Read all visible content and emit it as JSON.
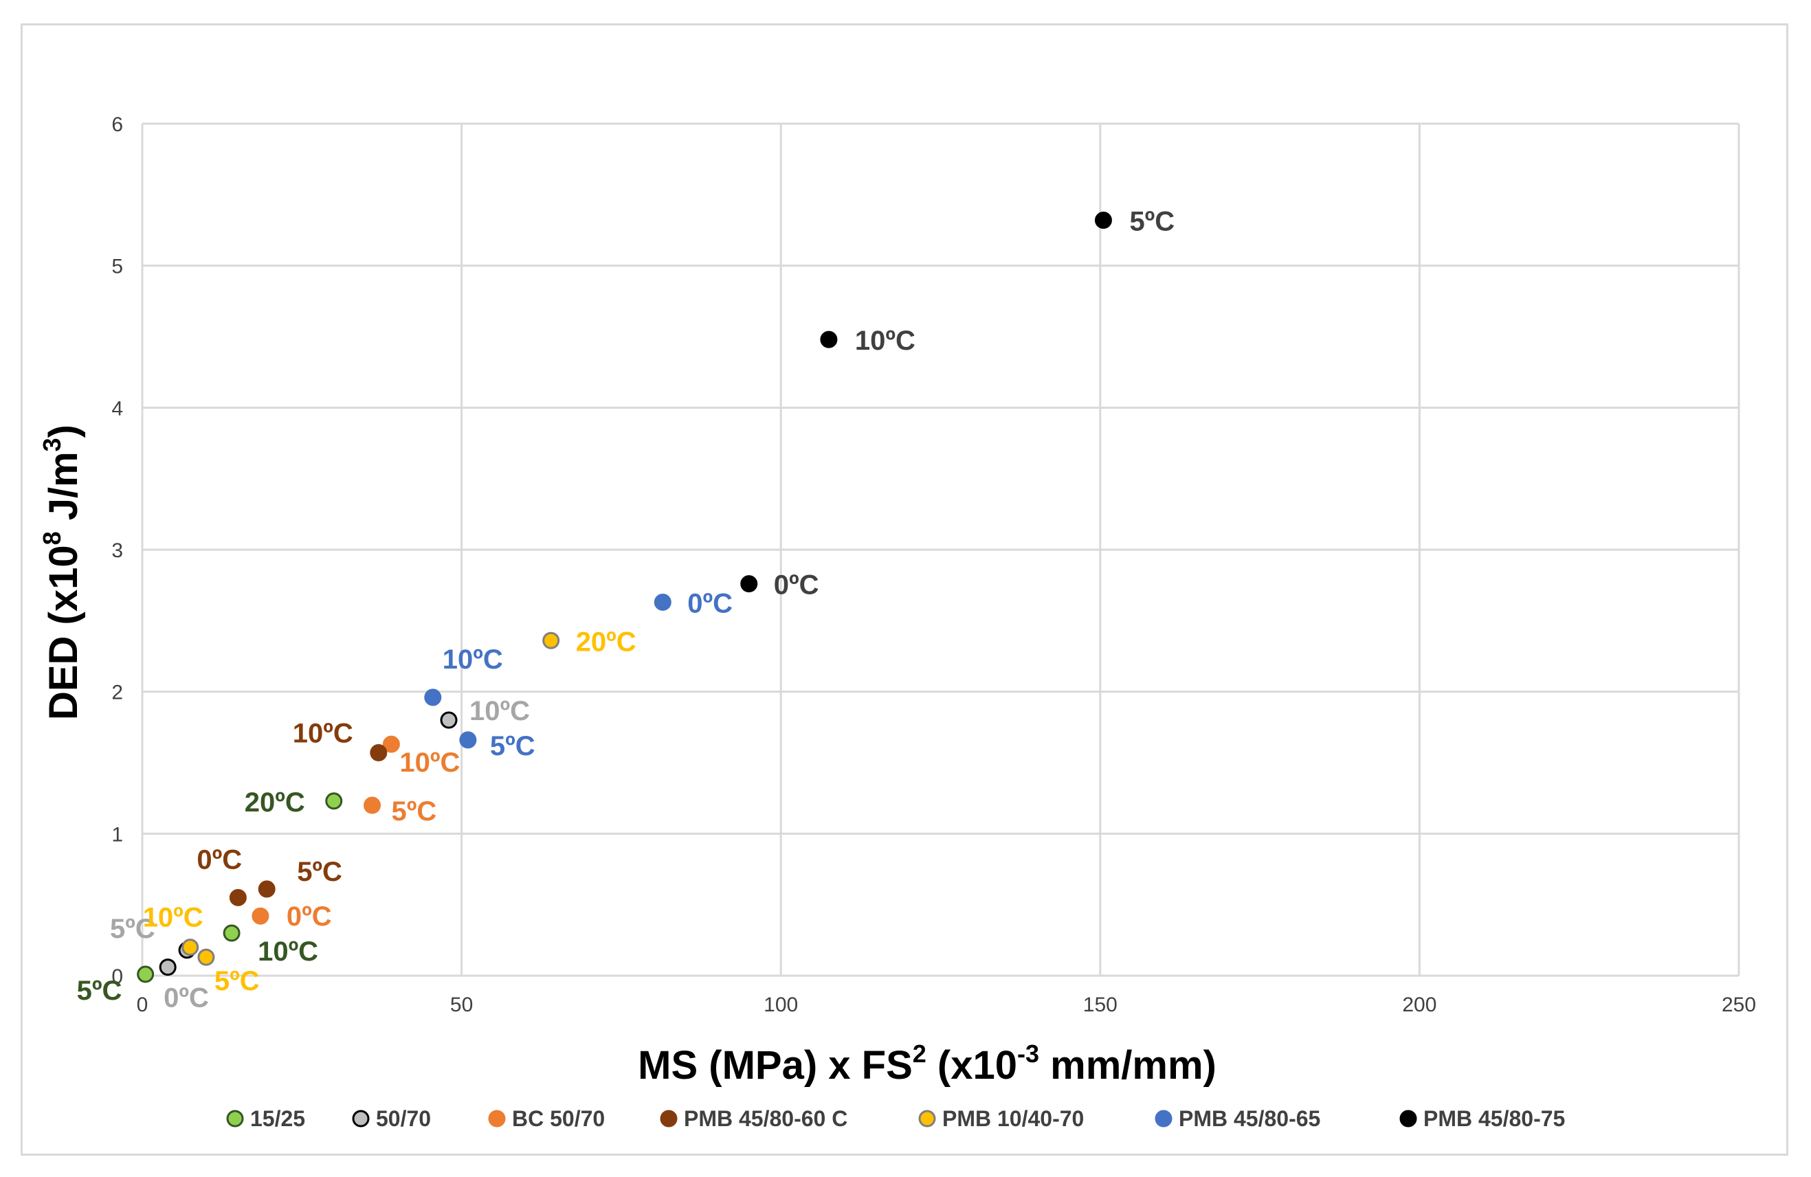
{
  "chart_data": {
    "type": "scatter",
    "title": "",
    "xlabel": {
      "main": "MS (MPa) x FS",
      "sup1": "2",
      "mid": " (x10",
      "sup2": "-3",
      "tail": " mm/mm)"
    },
    "ylabel": {
      "main": "DED (x10",
      "sup1": "8",
      "mid": " J/m",
      "sup2": "3",
      "tail": ")"
    },
    "xlim": [
      0,
      250
    ],
    "ylim": [
      0,
      6
    ],
    "xticks": [
      "0",
      "50",
      "100",
      "150",
      "200",
      "250"
    ],
    "yticks": [
      "0",
      "1",
      "2",
      "3",
      "4",
      "5",
      "6"
    ],
    "grid": true,
    "legend_position": "bottom",
    "series": [
      {
        "name": "15/25",
        "color": "#8fd14f",
        "edge": "#375623",
        "label_color": "#375623",
        "points": [
          {
            "x": 0.5,
            "y": 0.01,
            "label": "5ºC"
          },
          {
            "x": 14,
            "y": 0.3,
            "label": "10ºC"
          },
          {
            "x": 30,
            "y": 1.23,
            "label": "20ºC"
          }
        ]
      },
      {
        "name": "50/70",
        "color": "#bfbfbf",
        "edge": "#000000",
        "label_color": "#a6a6a6",
        "points": [
          {
            "x": 4,
            "y": 0.06,
            "label": "0ºC"
          },
          {
            "x": 7,
            "y": 0.18,
            "label": "5ºC"
          },
          {
            "x": 48,
            "y": 1.8,
            "label": "10ºC"
          }
        ]
      },
      {
        "name": "BC 50/70",
        "color": "#ed7d31",
        "edge": "#ed7d31",
        "label_color": "#ed7d31",
        "points": [
          {
            "x": 18.5,
            "y": 0.42,
            "label": "0ºC"
          },
          {
            "x": 36,
            "y": 1.2,
            "label": "5ºC"
          },
          {
            "x": 39,
            "y": 1.63,
            "label": "10ºC"
          }
        ]
      },
      {
        "name": "PMB 45/80-60 C",
        "color": "#843c0c",
        "edge": "#843c0c",
        "label_color": "#843c0c",
        "points": [
          {
            "x": 15,
            "y": 0.55,
            "label": "0ºC"
          },
          {
            "x": 19.5,
            "y": 0.61,
            "label": "5ºC"
          },
          {
            "x": 37,
            "y": 1.57,
            "label": "10ºC"
          }
        ]
      },
      {
        "name": "PMB 10/40-70",
        "color": "#ffc000",
        "edge": "#7f7f7f",
        "label_color": "#ffc000",
        "points": [
          {
            "x": 10,
            "y": 0.13,
            "label": "5ºC"
          },
          {
            "x": 7.5,
            "y": 0.2,
            "label": "10ºC"
          },
          {
            "x": 64,
            "y": 2.36,
            "label": "20ºC"
          }
        ]
      },
      {
        "name": "PMB 45/80-65",
        "color": "#4472c4",
        "edge": "#4472c4",
        "label_color": "#4472c4",
        "points": [
          {
            "x": 81.5,
            "y": 2.63,
            "label": "0ºC"
          },
          {
            "x": 51,
            "y": 1.66,
            "label": "5ºC"
          },
          {
            "x": 45.5,
            "y": 1.96,
            "label": "10ºC"
          }
        ]
      },
      {
        "name": "PMB 45/80-75",
        "color": "#000000",
        "edge": "#000000",
        "label_color": "#404040",
        "points": [
          {
            "x": 95,
            "y": 2.76,
            "label": "0ºC"
          },
          {
            "x": 150.5,
            "y": 5.32,
            "label": "5ºC"
          },
          {
            "x": 107.5,
            "y": 4.48,
            "label": "10ºC"
          }
        ]
      }
    ]
  }
}
